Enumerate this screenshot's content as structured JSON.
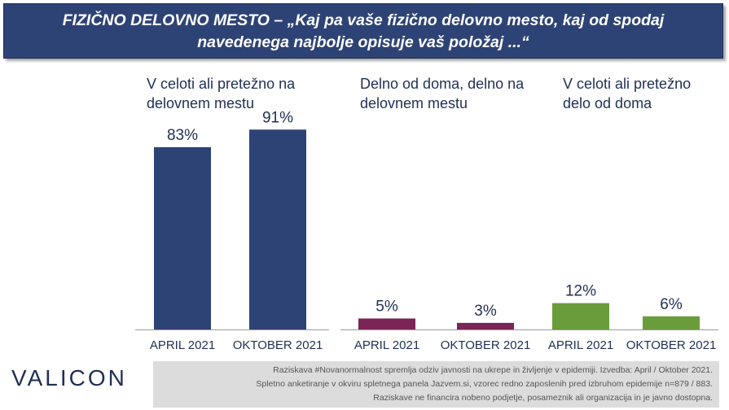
{
  "title": {
    "line1": "FIZIČNO DELOVNO MESTO – „Kaj pa vaše fizično delovno mesto, kaj od spodaj",
    "line2": "navedenega najbolje opisuje vaš položaj ...“"
  },
  "colors": {
    "title_bg": "#2e4375",
    "footnote_bg": "#dcdcdc"
  },
  "logo": "VALICON",
  "footnote": {
    "line1": "Raziskava #Novanormalnost spremlja odziv javnosti na ukrepe in življenje v epidemiji. Izvedba: April / Oktober 2021.",
    "line2": "Spletno anketiranje v okviru spletnega panela Jazvem.si, vzorec redno zaposlenih pred izbruhom epidemije n=879 / 883.",
    "line3": "Raziskave ne financira nobeno podjetje, posameznik ali organizacija in je javno dostopna."
  },
  "chart_data": {
    "type": "bar",
    "unit": "%",
    "ylim": [
      0,
      100
    ],
    "grid": false,
    "groups": [
      {
        "label_line1": "V celoti ali pretežno na",
        "label_line2": "delovnem mestu",
        "color": "#2e4375",
        "categories": [
          "APRIL 2021",
          "OKTOBER 2021"
        ],
        "values": [
          83,
          91
        ]
      },
      {
        "label_line1": "Delno od doma, delno na",
        "label_line2": "delovnem mestu",
        "color": "#7b2458",
        "categories": [
          "APRIL 2021",
          "OKTOBER 2021"
        ],
        "values": [
          5,
          3
        ]
      },
      {
        "label_line1": "V celoti ali pretežno",
        "label_line2": "delo od doma",
        "color": "#6a9c3c",
        "categories": [
          "APRIL 2021",
          "OKTOBER 2021"
        ],
        "values": [
          12,
          6
        ]
      }
    ]
  }
}
